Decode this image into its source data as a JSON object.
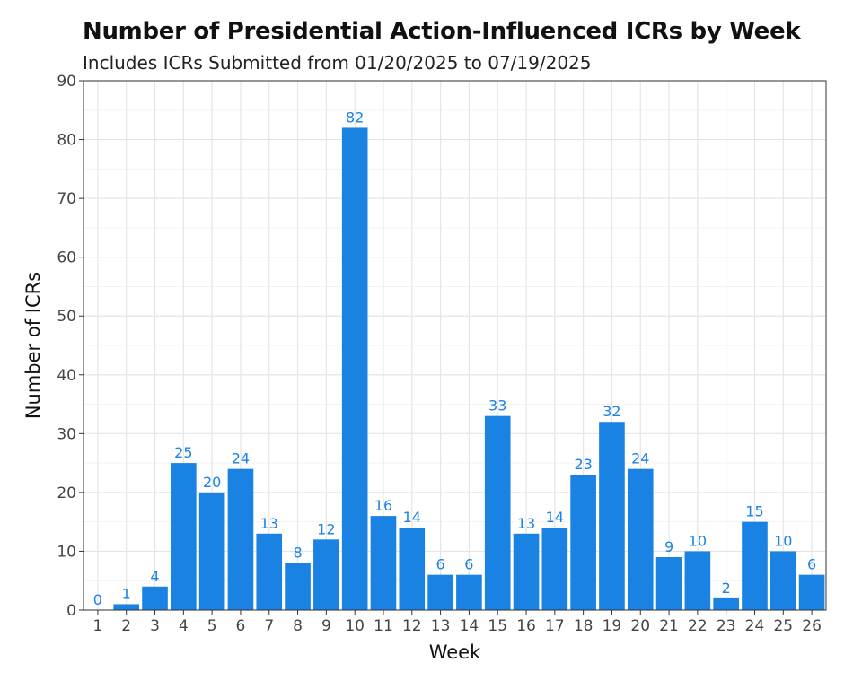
{
  "chart_data": {
    "type": "bar",
    "title": "Number of Presidential Action-Influenced ICRs by Week",
    "subtitle": "Includes ICRs Submitted from 01/20/2025 to 07/19/2025",
    "xlabel": "Week",
    "ylabel": "Number of ICRs",
    "categories": [
      "1",
      "2",
      "3",
      "4",
      "5",
      "6",
      "7",
      "8",
      "9",
      "10",
      "11",
      "12",
      "13",
      "14",
      "15",
      "16",
      "17",
      "18",
      "19",
      "20",
      "21",
      "22",
      "23",
      "24",
      "25",
      "26"
    ],
    "values": [
      0,
      1,
      4,
      25,
      20,
      24,
      13,
      8,
      12,
      82,
      16,
      14,
      6,
      6,
      33,
      13,
      14,
      23,
      32,
      24,
      9,
      10,
      2,
      15,
      10,
      6
    ],
    "ylim": [
      0,
      90
    ],
    "yticks": [
      0,
      10,
      20,
      30,
      40,
      50,
      60,
      70,
      80,
      90
    ],
    "grid": true,
    "bar_color": "#1a82e2",
    "label_color": "#1a82e2"
  }
}
